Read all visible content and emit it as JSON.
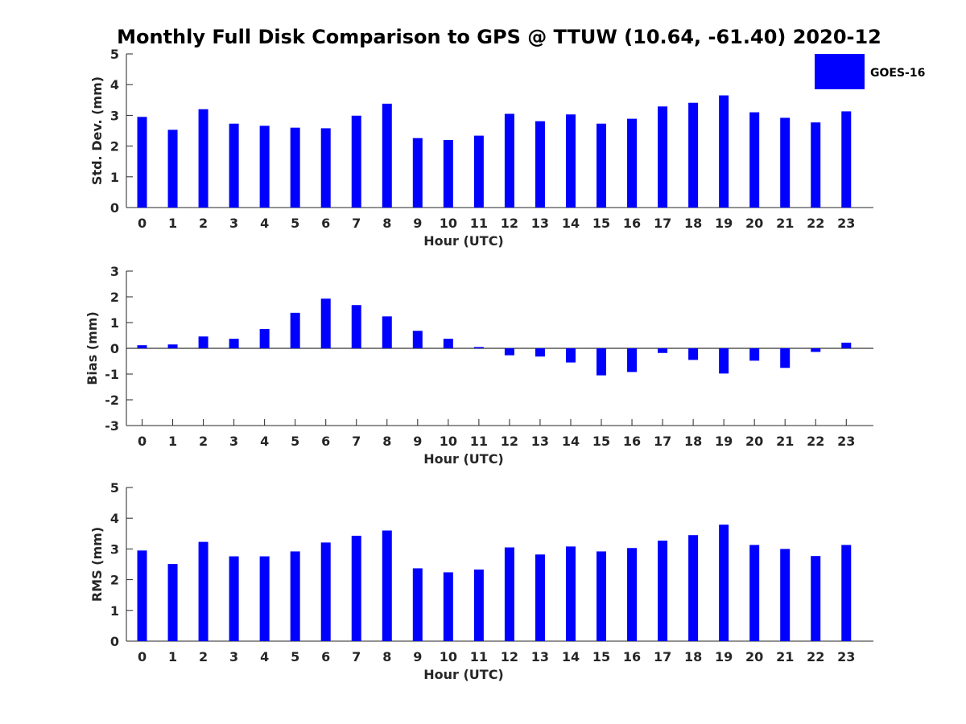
{
  "title": "Monthly Full Disk Comparison to GPS @ TTUW (10.64, -61.40) 2020-12",
  "legend": {
    "label": "GOES-16",
    "color": "#0000ff",
    "placement": "top-right"
  },
  "chart_data": [
    {
      "type": "bar",
      "xlabel": "Hour (UTC)",
      "ylabel": "Std. Dev. (mm)",
      "ylim": [
        0,
        5
      ],
      "yticks": [
        0,
        1,
        2,
        3,
        4,
        5
      ],
      "grid": false,
      "categories": [
        "0",
        "1",
        "2",
        "3",
        "4",
        "5",
        "6",
        "7",
        "8",
        "9",
        "10",
        "11",
        "12",
        "13",
        "14",
        "15",
        "16",
        "17",
        "18",
        "19",
        "20",
        "21",
        "22",
        "23"
      ],
      "series": [
        {
          "name": "GOES-16",
          "color": "#0000ff",
          "values": [
            2.95,
            2.53,
            3.2,
            2.73,
            2.66,
            2.6,
            2.58,
            2.99,
            3.38,
            2.26,
            2.2,
            2.34,
            3.05,
            2.81,
            3.03,
            2.73,
            2.89,
            3.29,
            3.41,
            3.65,
            3.1,
            2.92,
            2.77,
            3.13
          ]
        }
      ]
    },
    {
      "type": "bar",
      "xlabel": "Hour (UTC)",
      "ylabel": "Bias (mm)",
      "ylim": [
        -3,
        3
      ],
      "yticks": [
        -3,
        -2,
        -1,
        0,
        1,
        2,
        3
      ],
      "grid": false,
      "zero_line": true,
      "categories": [
        "0",
        "1",
        "2",
        "3",
        "4",
        "5",
        "6",
        "7",
        "8",
        "9",
        "10",
        "11",
        "12",
        "13",
        "14",
        "15",
        "16",
        "17",
        "18",
        "19",
        "20",
        "21",
        "22",
        "23"
      ],
      "series": [
        {
          "name": "GOES-16",
          "color": "#0000ff",
          "values": [
            0.12,
            0.15,
            0.46,
            0.37,
            0.75,
            1.38,
            1.93,
            1.68,
            1.24,
            0.68,
            0.37,
            0.05,
            -0.27,
            -0.32,
            -0.55,
            -1.05,
            -0.92,
            -0.18,
            -0.45,
            -0.98,
            -0.48,
            -0.76,
            -0.14,
            0.22
          ]
        }
      ]
    },
    {
      "type": "bar",
      "xlabel": "Hour (UTC)",
      "ylabel": "RMS (mm)",
      "ylim": [
        0,
        5
      ],
      "yticks": [
        0,
        1,
        2,
        3,
        4,
        5
      ],
      "grid": false,
      "categories": [
        "0",
        "1",
        "2",
        "3",
        "4",
        "5",
        "6",
        "7",
        "8",
        "9",
        "10",
        "11",
        "12",
        "13",
        "14",
        "15",
        "16",
        "17",
        "18",
        "19",
        "20",
        "21",
        "22",
        "23"
      ],
      "series": [
        {
          "name": "GOES-16",
          "color": "#0000ff",
          "values": [
            2.95,
            2.51,
            3.23,
            2.76,
            2.76,
            2.92,
            3.21,
            3.43,
            3.6,
            2.37,
            2.24,
            2.33,
            3.05,
            2.82,
            3.08,
            2.92,
            3.03,
            3.27,
            3.45,
            3.79,
            3.13,
            3.0,
            2.77,
            3.13
          ]
        }
      ]
    }
  ]
}
